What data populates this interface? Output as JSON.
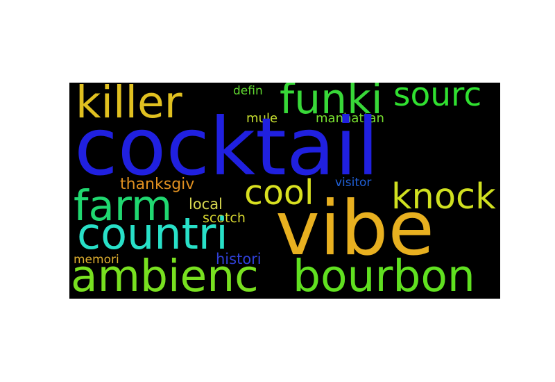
{
  "background_color": "#000000",
  "words": {
    "cocktail": {
      "text": "cocktail",
      "color": "#2020e0"
    },
    "vibe": {
      "text": "vibe",
      "color": "#e8b020"
    },
    "killer": {
      "text": "killer",
      "color": "#e0c020"
    },
    "funki": {
      "text": "funki",
      "color": "#38d838"
    },
    "sourc": {
      "text": "sourc",
      "color": "#30e030"
    },
    "farm": {
      "text": "farm",
      "color": "#20d870"
    },
    "cool": {
      "text": "cool",
      "color": "#d8e020"
    },
    "knock": {
      "text": "knock",
      "color": "#d0e020"
    },
    "countri": {
      "text": "countri",
      "color": "#28e0c8"
    },
    "ambienc": {
      "text": "ambienc",
      "color": "#78e020"
    },
    "bourbon": {
      "text": "bourbon",
      "color": "#60e020"
    },
    "defin": {
      "text": "defin",
      "color": "#60d830"
    },
    "mule": {
      "text": "mule",
      "color": "#c8e030"
    },
    "manhattan": {
      "text": "manhattan",
      "color": "#78e030"
    },
    "thanksgiv": {
      "text": "thanksgiv",
      "color": "#e09020"
    },
    "visitor": {
      "text": "visitor",
      "color": "#2060d8"
    },
    "local": {
      "text": "local",
      "color": "#d8d850"
    },
    "scotch": {
      "text": "scotch",
      "color": "#d8d830"
    },
    "memori": {
      "text": "memori",
      "color": "#e0b030"
    },
    "histori": {
      "text": "histori",
      "color": "#3040d8"
    }
  }
}
